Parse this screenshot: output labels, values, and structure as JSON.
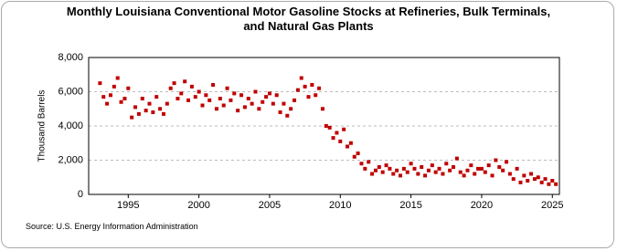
{
  "chart_data": {
    "type": "scatter",
    "title": "Monthly Louisiana Conventional Motor Gasoline Stocks at Refineries, Bulk Terminals, and Natural Gas Plants",
    "y_label": "Thousand Barrels",
    "source": "Source: U.S. Energy Information Administration",
    "color": "#c00000",
    "grid": true,
    "xlim": [
      1992.2,
      2025.5
    ],
    "xticks": [
      1995,
      2000,
      2005,
      2010,
      2015,
      2020,
      2025
    ],
    "ylim": [
      0,
      8000
    ],
    "yticks": [
      {
        "value": 0,
        "label": "0"
      },
      {
        "value": 2000,
        "label": "2,000"
      },
      {
        "value": 4000,
        "label": "4,000"
      },
      {
        "value": 6000,
        "label": "6,000"
      },
      {
        "value": 8000,
        "label": "8,000"
      }
    ],
    "x": [
      1993,
      1993.25,
      1993.5,
      1993.75,
      1994,
      1994.25,
      1994.5,
      1994.75,
      1995,
      1995.25,
      1995.5,
      1995.75,
      1996,
      1996.25,
      1996.5,
      1996.75,
      1997,
      1997.25,
      1997.5,
      1997.75,
      1998,
      1998.25,
      1998.5,
      1998.75,
      1999,
      1999.25,
      1999.5,
      1999.75,
      2000,
      2000.25,
      2000.5,
      2000.75,
      2001,
      2001.25,
      2001.5,
      2001.75,
      2002,
      2002.25,
      2002.5,
      2002.75,
      2003,
      2003.25,
      2003.5,
      2003.75,
      2004,
      2004.25,
      2004.5,
      2004.75,
      2005,
      2005.25,
      2005.5,
      2005.75,
      2006,
      2006.25,
      2006.5,
      2006.75,
      2007,
      2007.25,
      2007.5,
      2007.75,
      2008,
      2008.25,
      2008.5,
      2008.75,
      2009,
      2009.25,
      2009.5,
      2009.75,
      2010,
      2010.25,
      2010.5,
      2010.75,
      2011,
      2011.25,
      2011.5,
      2011.75,
      2012,
      2012.25,
      2012.5,
      2012.75,
      2013,
      2013.25,
      2013.5,
      2013.75,
      2014,
      2014.25,
      2014.5,
      2014.75,
      2015,
      2015.25,
      2015.5,
      2015.75,
      2016,
      2016.25,
      2016.5,
      2016.75,
      2017,
      2017.25,
      2017.5,
      2017.75,
      2018,
      2018.25,
      2018.5,
      2018.75,
      2019,
      2019.25,
      2019.5,
      2019.75,
      2020,
      2020.25,
      2020.5,
      2020.75,
      2021,
      2021.25,
      2021.5,
      2021.75,
      2022,
      2022.25,
      2022.5,
      2022.75,
      2023,
      2023.25,
      2023.5,
      2023.75,
      2024,
      2024.25,
      2024.5,
      2024.75,
      2025,
      2025.25
    ],
    "values": [
      6500,
      5700,
      5300,
      5800,
      6300,
      6800,
      5400,
      5600,
      6200,
      4500,
      5100,
      4700,
      5600,
      4900,
      5300,
      4800,
      5700,
      5000,
      4700,
      5300,
      6200,
      6500,
      5600,
      5900,
      6600,
      5500,
      6300,
      5700,
      6000,
      5200,
      5800,
      5500,
      6400,
      5000,
      5600,
      5200,
      6200,
      5500,
      5900,
      4900,
      5800,
      5100,
      5600,
      5300,
      6000,
      5000,
      5400,
      5700,
      5900,
      5300,
      5800,
      4800,
      5300,
      4600,
      5000,
      5500,
      6100,
      6800,
      6300,
      5700,
      6400,
      5800,
      6200,
      5000,
      4000,
      3900,
      3300,
      3600,
      3100,
      3800,
      2800,
      3000,
      2200,
      2400,
      1800,
      1500,
      1900,
      1200,
      1400,
      1600,
      1300,
      1700,
      1500,
      1200,
      1400,
      1100,
      1500,
      1300,
      1800,
      1500,
      1200,
      1600,
      1100,
      1400,
      1700,
      1300,
      1500,
      1200,
      1800,
      1400,
      1600,
      2100,
      1300,
      1100,
      1400,
      1700,
      1200,
      1500,
      1500,
      1300,
      1700,
      1100,
      2000,
      1600,
      1400,
      1900,
      1200,
      900,
      1500,
      700,
      1100,
      800,
      1200,
      900,
      1000,
      700,
      900,
      600,
      800,
      600
    ]
  }
}
